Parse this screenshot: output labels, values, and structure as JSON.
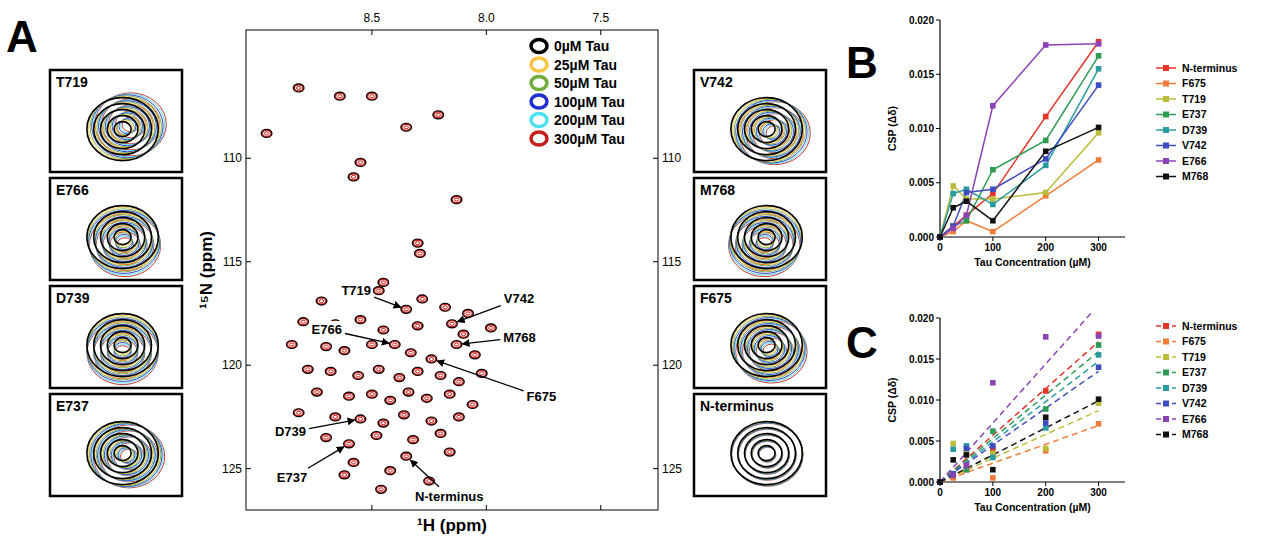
{
  "chart_data": [
    {
      "panel": "A",
      "type": "spectrum",
      "x_label": "¹H (ppm)",
      "y_label": "¹⁵N (ppm)",
      "xlim": [
        9.05,
        7.25
      ],
      "ylim": [
        127.0,
        103.8
      ],
      "xticks": [
        8.5,
        {
          "value": 8,
          "label": "8.0"
        },
        7.5
      ],
      "yticks": [
        110,
        115,
        120,
        125
      ],
      "x": [
        8.82,
        8.64,
        8.5,
        8.96,
        8.35,
        8.21,
        8.55,
        8.58,
        8.13,
        8.3,
        8.29,
        8.45,
        8.72,
        8.58,
        8.47,
        8.35,
        8.28,
        8.18,
        8.08,
        8.8,
        8.66,
        8.55,
        8.45,
        8.3,
        8.15,
        8.1,
        7.98,
        8.85,
        8.7,
        8.62,
        8.5,
        8.4,
        8.33,
        8.24,
        8.13,
        8.05,
        8.78,
        8.68,
        8.56,
        8.47,
        8.38,
        8.3,
        8.2,
        8.12,
        8.02,
        8.74,
        8.6,
        8.5,
        8.42,
        8.34,
        8.26,
        8.16,
        8.06,
        8.82,
        8.66,
        8.55,
        8.45,
        8.36,
        8.24,
        8.12,
        8.7,
        8.6,
        8.48,
        8.32,
        8.2,
        8.58,
        8.35,
        8.16,
        8.42,
        8.62,
        8.25,
        8.46
      ],
      "y": [
        106.6,
        107.0,
        107.0,
        108.8,
        108.5,
        107.9,
        110.2,
        110.9,
        112.0,
        114.1,
        114.6,
        116.0,
        116.9,
        116.5,
        116.4,
        117.3,
        116.8,
        117.2,
        117.5,
        117.9,
        118.0,
        117.8,
        118.3,
        118.1,
        118.0,
        118.5,
        118.2,
        119.0,
        119.1,
        119.3,
        119.0,
        119.0,
        119.4,
        119.7,
        119.0,
        119.5,
        120.2,
        120.3,
        120.5,
        120.2,
        120.6,
        120.3,
        120.5,
        120.8,
        120.4,
        121.3,
        121.5,
        121.4,
        121.7,
        121.3,
        121.6,
        121.4,
        121.9,
        122.3,
        122.5,
        122.6,
        122.8,
        122.4,
        122.7,
        122.5,
        123.5,
        123.8,
        123.4,
        123.6,
        123.3,
        124.7,
        124.4,
        124.2,
        125.1,
        125.3,
        125.6,
        126.0
      ],
      "series": [
        {
          "name": "0µM Tau",
          "color": "#000000"
        },
        {
          "name": "25µM Tau",
          "color": "#f5c542"
        },
        {
          "name": "50µM Tau",
          "color": "#6fae3c"
        },
        {
          "name": "100µM Tau",
          "color": "#1f2fd0"
        },
        {
          "name": "200µM Tau",
          "color": "#4fe0f0"
        },
        {
          "name": "300µM Tau",
          "color": "#c4201a"
        }
      ],
      "legend": "upper right",
      "annotations": [
        {
          "text": "T719",
          "x": 8.35,
          "y": 117.3
        },
        {
          "text": "E766",
          "x": 8.4,
          "y": 119.0
        },
        {
          "text": "V742",
          "x": 8.15,
          "y": 118.0
        },
        {
          "text": "M768",
          "x": 8.13,
          "y": 119.0
        },
        {
          "text": "F675",
          "x": 8.24,
          "y": 119.7
        },
        {
          "text": "D739",
          "x": 8.55,
          "y": 122.6
        },
        {
          "text": "E737",
          "x": 8.6,
          "y": 123.8
        },
        {
          "text": "N-terminus",
          "x": 8.35,
          "y": 124.4
        }
      ],
      "insets": [
        "T719",
        "E766",
        "D739",
        "E737",
        "V742",
        "M768",
        "F675",
        "N-terminus"
      ]
    },
    {
      "panel": "B",
      "type": "line",
      "marker": "square",
      "x_label": "Tau Concentration (µM)",
      "y_label": "CSP (Δδ)",
      "xlim": [
        0,
        350
      ],
      "ylim": [
        0,
        0.02
      ],
      "xticks": [
        0,
        100,
        200,
        300
      ],
      "yticks": [
        {
          "value": 0,
          "label": "0.000"
        },
        0.005,
        {
          "value": 0.01,
          "label": "0.010"
        },
        0.015,
        {
          "value": 0.02,
          "label": "0.020"
        }
      ],
      "x": [
        0,
        25,
        50,
        100,
        200,
        300
      ],
      "series": [
        {
          "name": "N-terminus",
          "color": "#e6332a",
          "values": [
            0,
            0.001,
            0.002,
            0.004,
            0.0111,
            0.018
          ]
        },
        {
          "name": "F675",
          "color": "#f07c3a",
          "values": [
            0,
            0.0005,
            0.0015,
            0.0005,
            0.0038,
            0.0071
          ]
        },
        {
          "name": "T719",
          "color": "#b9bd3a",
          "values": [
            0,
            0.0047,
            0.0035,
            0.0035,
            0.0041,
            0.0096
          ]
        },
        {
          "name": "E737",
          "color": "#2e9b53",
          "values": [
            0,
            0.001,
            0.0015,
            0.0062,
            0.0089,
            0.0167
          ]
        },
        {
          "name": "D739",
          "color": "#2a9c9f",
          "values": [
            0,
            0.004,
            0.0044,
            0.003,
            0.0066,
            0.0155
          ]
        },
        {
          "name": "V742",
          "color": "#3d4cc0",
          "values": [
            0,
            0.001,
            0.0041,
            0.0044,
            0.0072,
            0.014
          ]
        },
        {
          "name": "E766",
          "color": "#8c43b6",
          "values": [
            0,
            0.0008,
            0.002,
            0.0121,
            0.0177,
            0.0178
          ]
        },
        {
          "name": "M768",
          "color": "#111111",
          "values": [
            0,
            0.0027,
            0.0033,
            0.0015,
            0.0079,
            0.0101
          ]
        }
      ],
      "legend": "right"
    },
    {
      "panel": "C",
      "type": "scatter",
      "marker": "square",
      "line_style": "dashed",
      "x_label": "Tau Concentration (µM)",
      "y_label": "CSP (Δδ)",
      "xlim": [
        0,
        350
      ],
      "ylim": [
        0,
        0.02
      ],
      "xticks": [
        0,
        100,
        200,
        300
      ],
      "yticks": [
        {
          "value": 0,
          "label": "0.000"
        },
        0.005,
        {
          "value": 0.01,
          "label": "0.010"
        },
        0.015,
        {
          "value": 0.02,
          "label": "0.020"
        }
      ],
      "x": [
        0,
        25,
        50,
        100,
        200,
        300
      ],
      "series": [
        {
          "name": "N-terminus",
          "color": "#e6332a",
          "values": [
            0,
            0.001,
            0.002,
            0.004,
            0.0111,
            0.018
          ],
          "fit_slope": 5.7e-05
        },
        {
          "name": "F675",
          "color": "#f07c3a",
          "values": [
            0,
            0.0005,
            0.0015,
            0.0005,
            0.0038,
            0.0071
          ],
          "fit_slope": 2.3e-05
        },
        {
          "name": "T719",
          "color": "#b9bd3a",
          "values": [
            0,
            0.0047,
            0.0035,
            0.0035,
            0.0041,
            0.0096
          ],
          "fit_slope": 2.9e-05
        },
        {
          "name": "E737",
          "color": "#2e9b53",
          "values": [
            0,
            0.001,
            0.0015,
            0.0062,
            0.0089,
            0.0167
          ],
          "fit_slope": 5.3e-05
        },
        {
          "name": "D739",
          "color": "#2a9c9f",
          "values": [
            0,
            0.004,
            0.0044,
            0.003,
            0.0066,
            0.0155
          ],
          "fit_slope": 4.9e-05
        },
        {
          "name": "V742",
          "color": "#3d4cc0",
          "values": [
            0,
            0.001,
            0.0041,
            0.0044,
            0.0072,
            0.014
          ],
          "fit_slope": 4.5e-05
        },
        {
          "name": "E766",
          "color": "#8c43b6",
          "values": [
            0,
            0.0008,
            0.002,
            0.0121,
            0.0177,
            0.0178
          ],
          "fit_slope": 7.2e-05
        },
        {
          "name": "M768",
          "color": "#111111",
          "values": [
            0,
            0.0027,
            0.0033,
            0.0015,
            0.0079,
            0.0101
          ],
          "fit_slope": 3.3e-05
        }
      ],
      "legend": "right"
    }
  ]
}
